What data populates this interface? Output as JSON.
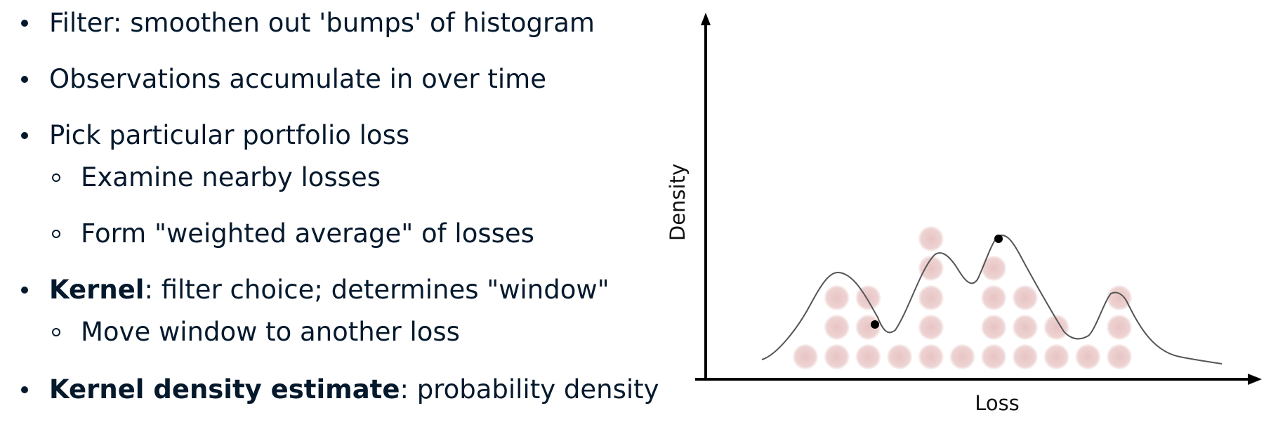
{
  "bullets": [
    {
      "level": 1,
      "text": "Filter: smoothen out 'bumps' of histogram"
    },
    {
      "level": 1,
      "text": "Observations accumulate in over time"
    },
    {
      "level": 1,
      "text": "Pick particular portfolio loss"
    },
    {
      "level": 2,
      "text": "Examine nearby losses"
    },
    {
      "level": 2,
      "text": "Form \"weighted average\" of losses"
    },
    {
      "level": 1,
      "bold": "Kernel",
      "text": ": filter choice; determines \"window\""
    },
    {
      "level": 2,
      "text": "Move window to another loss"
    },
    {
      "level": 1,
      "bold": "Kernel density estimate",
      "text": ": probability density"
    }
  ],
  "diagram": {
    "y_axis_label": "Density",
    "x_axis_label": "Loss",
    "colors": {
      "observation_dot": "#e8c4c4",
      "density_curve": "#555555",
      "highlight_point": "#000000",
      "axis": "#000000"
    },
    "histogram_stacks": [
      1,
      3,
      3,
      1,
      5,
      1,
      4,
      3,
      2,
      1,
      3
    ],
    "kernel_windows": 2
  }
}
